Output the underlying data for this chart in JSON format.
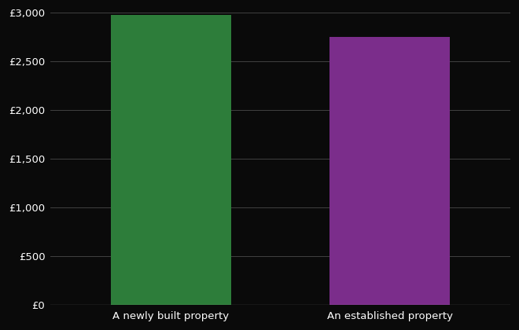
{
  "categories": [
    "A newly built property",
    "An established property"
  ],
  "values": [
    2975,
    2752
  ],
  "bar_colors": [
    "#2d7d3a",
    "#7b2d8b"
  ],
  "background_color": "#0a0a0a",
  "text_color": "#ffffff",
  "grid_color": "#4a4a4a",
  "ylim": [
    0,
    3000
  ],
  "yticks": [
    0,
    500,
    1000,
    1500,
    2000,
    2500,
    3000
  ],
  "bar_width": 0.55,
  "x_positions": [
    0,
    1
  ],
  "xlim": [
    -0.55,
    1.55
  ]
}
